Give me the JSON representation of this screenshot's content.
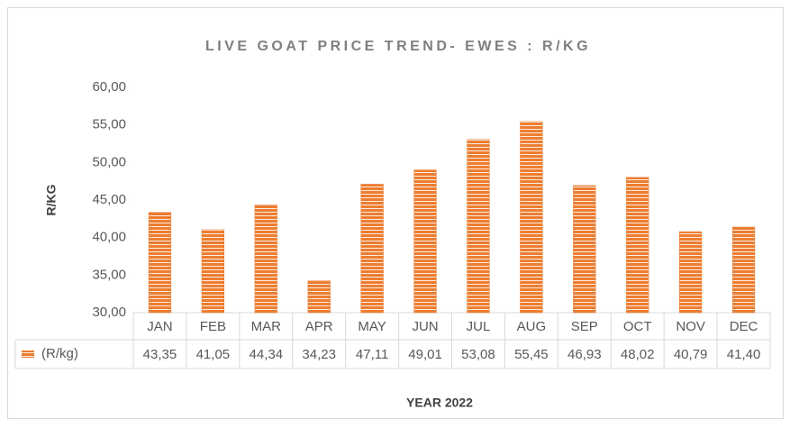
{
  "chart_data": {
    "type": "bar",
    "title": "LIVE GOAT PRICE TREND- EWES : R/KG",
    "x_label": "YEAR 2022",
    "y_label": "R/KG",
    "categories": [
      "JAN",
      "FEB",
      "MAR",
      "APR",
      "MAY",
      "JUN",
      "JUL",
      "AUG",
      "SEP",
      "OCT",
      "NOV",
      "DEC"
    ],
    "series": [
      {
        "name": "(R/kg)",
        "color": "#ed7d31",
        "values": [
          43.35,
          41.05,
          44.34,
          34.23,
          47.11,
          49.01,
          53.08,
          55.45,
          46.93,
          48.02,
          40.79,
          41.4
        ],
        "value_labels": [
          "43,35",
          "41,05",
          "44,34",
          "34,23",
          "47,11",
          "49,01",
          "53,08",
          "55,45",
          "46,93",
          "48,02",
          "40,79",
          "41,40"
        ]
      }
    ],
    "ylim": [
      30,
      60
    ],
    "yticks": [
      {
        "value": 30,
        "label": "30,00"
      },
      {
        "value": 35,
        "label": "35,00"
      },
      {
        "value": 40,
        "label": "40,00"
      },
      {
        "value": 45,
        "label": "45,00"
      },
      {
        "value": 50,
        "label": "50,00"
      },
      {
        "value": 55,
        "label": "55,00"
      },
      {
        "value": 60,
        "label": "60,00"
      }
    ],
    "data_table": true
  }
}
